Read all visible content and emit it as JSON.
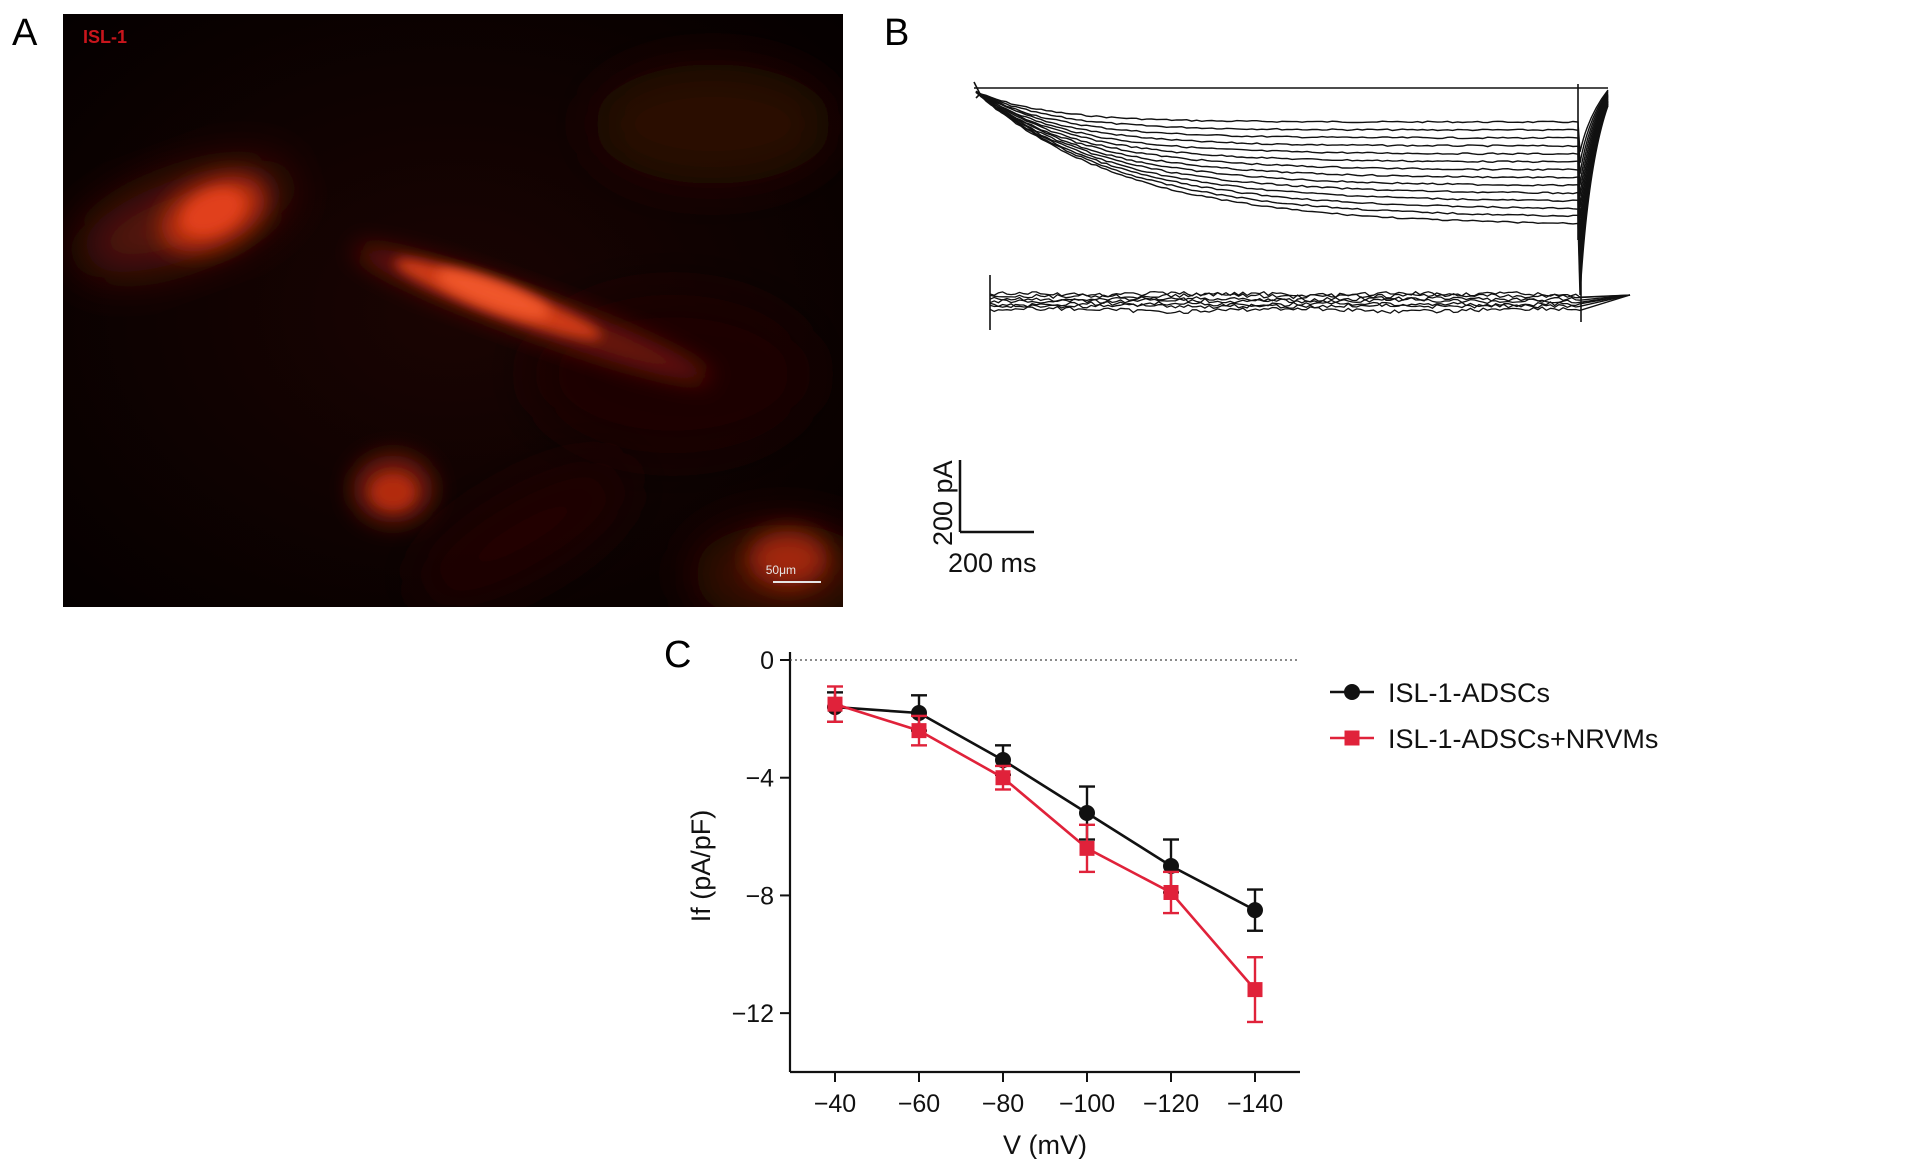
{
  "panels": {
    "a": "A",
    "b": "B",
    "c": "C"
  },
  "micrograph": {
    "label": "ISL-1",
    "scale_bar": "50μm",
    "colors": {
      "background": "#0a0000",
      "stain": "#e43b1f",
      "label": "#c9151c"
    }
  },
  "traces": {
    "scale_y": "200 pA",
    "scale_x": "200 ms"
  },
  "chart_data": {
    "type": "line",
    "xlabel": "V (mV)",
    "ylabel": "If (pA/pF)",
    "x": [
      -40,
      -60,
      -80,
      -100,
      -120,
      -140
    ],
    "x_tick_labels": [
      "−40",
      "−60",
      "−80",
      "−100",
      "−120",
      "−140"
    ],
    "ylim": [
      -14,
      0
    ],
    "y_ticks": [
      0,
      -4,
      -8,
      -12
    ],
    "y_tick_labels": [
      "0",
      "−4",
      "−8",
      "−12"
    ],
    "reference_line": 0,
    "legend_position": "top-right",
    "series": [
      {
        "name": "ISL-1-ADSCs",
        "color": "#111111",
        "marker": "circle",
        "values": [
          -1.6,
          -1.8,
          -3.4,
          -5.2,
          -7.0,
          -8.5
        ],
        "errors": [
          0.5,
          0.6,
          0.5,
          0.9,
          0.9,
          0.7
        ]
      },
      {
        "name": "ISL-1-ADSCs+NRVMs",
        "color": "#e0223a",
        "marker": "square",
        "values": [
          -1.5,
          -2.4,
          -4.0,
          -6.4,
          -7.9,
          -11.2
        ],
        "errors": [
          0.6,
          0.5,
          0.4,
          0.8,
          0.7,
          1.1
        ]
      }
    ]
  }
}
